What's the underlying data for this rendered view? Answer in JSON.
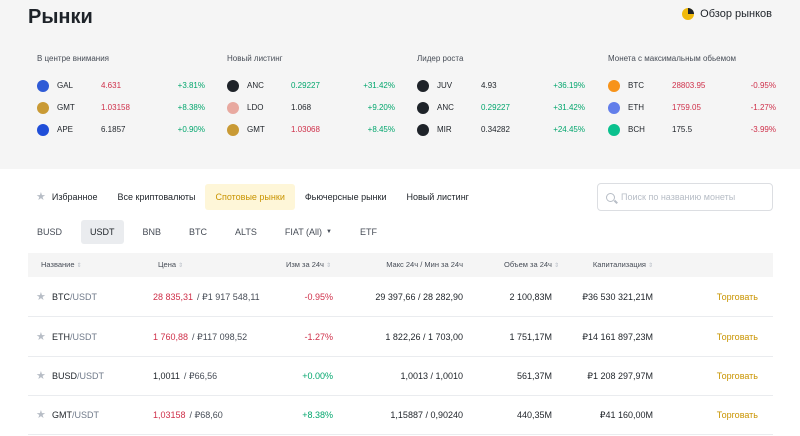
{
  "page_title": "Рынки",
  "overview_label": "Обзор рынков",
  "highlights": [
    {
      "title": "В центре внимания",
      "coins": [
        {
          "symbol": "GAL",
          "price": "4.631",
          "change": "+3.81%",
          "price_color": "#cf304a",
          "change_color": "#03a66d",
          "icon": "gal-icon",
          "icon_color": "#2f5bd6"
        },
        {
          "symbol": "GMT",
          "price": "1.03158",
          "change": "+8.38%",
          "price_color": "#cf304a",
          "change_color": "#03a66d",
          "icon": "gmt-icon",
          "icon_color": "#c99a35"
        },
        {
          "symbol": "APE",
          "price": "6.1857",
          "change": "+0.90%",
          "price_color": "#1e2329",
          "change_color": "#03a66d",
          "icon": "ape-icon",
          "icon_color": "#1f4ed8"
        }
      ]
    },
    {
      "title": "Новый листинг",
      "coins": [
        {
          "symbol": "ANC",
          "price": "0.29227",
          "change": "+31.42%",
          "price_color": "#03a66d",
          "change_color": "#03a66d",
          "icon": "anc-icon",
          "icon_color": "#1e2329"
        },
        {
          "symbol": "LDO",
          "price": "1.068",
          "change": "+9.20%",
          "price_color": "#1e2329",
          "change_color": "#03a66d",
          "icon": "ldo-icon",
          "icon_color": "#e8a9a0"
        },
        {
          "symbol": "GMT",
          "price": "1.03068",
          "change": "+8.45%",
          "price_color": "#cf304a",
          "change_color": "#03a66d",
          "icon": "gmt-icon",
          "icon_color": "#c99a35"
        }
      ]
    },
    {
      "title": "Лидер роста",
      "coins": [
        {
          "symbol": "JUV",
          "price": "4.93",
          "change": "+36.19%",
          "price_color": "#1e2329",
          "change_color": "#03a66d",
          "icon": "juv-icon",
          "icon_color": "#1e2329"
        },
        {
          "symbol": "ANC",
          "price": "0.29227",
          "change": "+31.42%",
          "price_color": "#03a66d",
          "change_color": "#03a66d",
          "icon": "anc-icon",
          "icon_color": "#1e2329"
        },
        {
          "symbol": "MIR",
          "price": "0.34282",
          "change": "+24.45%",
          "price_color": "#1e2329",
          "change_color": "#03a66d",
          "icon": "mir-icon",
          "icon_color": "#1e2329"
        }
      ]
    },
    {
      "title": "Монета с максимальным обьемом",
      "coins": [
        {
          "symbol": "BTC",
          "price": "28803.95",
          "change": "-0.95%",
          "price_color": "#cf304a",
          "change_color": "#cf304a",
          "icon": "btc-icon",
          "icon_color": "#f7931a"
        },
        {
          "symbol": "ETH",
          "price": "1759.05",
          "change": "-1.27%",
          "price_color": "#cf304a",
          "change_color": "#cf304a",
          "icon": "eth-icon",
          "icon_color": "#627eea"
        },
        {
          "symbol": "BCH",
          "price": "175.5",
          "change": "-3.99%",
          "price_color": "#1e2329",
          "change_color": "#cf304a",
          "icon": "bch-icon",
          "icon_color": "#0ac18e"
        }
      ]
    }
  ],
  "tabs": [
    "Избранное",
    "Все криптовалюты",
    "Спотовые рынки",
    "Фьючерсные рынки",
    "Новый листинг"
  ],
  "active_tab": "Спотовые рынки",
  "search_placeholder": "Поиск по названию монеты",
  "subtabs": [
    "BUSD",
    "USDT",
    "BNB",
    "BTC",
    "ALTS",
    "FIAT (All)",
    "ETF"
  ],
  "active_subtab": "USDT",
  "columns": {
    "name": "Название",
    "price": "Цена",
    "change": "Изм за 24ч",
    "high_low": "Макс 24ч / Мин за 24ч",
    "volume": "Объем за 24ч",
    "cap": "Капитализация"
  },
  "rows": [
    {
      "base": "BTC",
      "quote": "/USDT",
      "price": "28 835,31",
      "price_alt": "/ ₽1 917 548,11",
      "price_color": "#cf304a",
      "change": "-0.95%",
      "change_color": "#cf304a",
      "high_low": "29 397,66 / 28 282,90",
      "volume": "2 100,83M",
      "cap": "₽36 530 321,21M",
      "action": "Торговать"
    },
    {
      "base": "ETH",
      "quote": "/USDT",
      "price": "1 760,88",
      "price_alt": "/ ₽117 098,52",
      "price_color": "#cf304a",
      "change": "-1.27%",
      "change_color": "#cf304a",
      "high_low": "1 822,26 / 1 703,00",
      "volume": "1 751,17M",
      "cap": "₽14 161 897,23M",
      "action": "Торговать"
    },
    {
      "base": "BUSD",
      "quote": "/USDT",
      "price": "1,0011",
      "price_alt": "/ ₽66,56",
      "price_color": "#1e2329",
      "change": "+0.00%",
      "change_color": "#03a66d",
      "high_low": "1,0013 / 1,0010",
      "volume": "561,37M",
      "cap": "₽1 208 297,97M",
      "action": "Торговать"
    },
    {
      "base": "GMT",
      "quote": "/USDT",
      "price": "1,03158",
      "price_alt": "/ ₽68,60",
      "price_color": "#cf304a",
      "change": "+8.38%",
      "change_color": "#03a66d",
      "high_low": "1,15887 / 0,90240",
      "volume": "440,35M",
      "cap": "₽41 160,00M",
      "action": "Торговать"
    }
  ]
}
